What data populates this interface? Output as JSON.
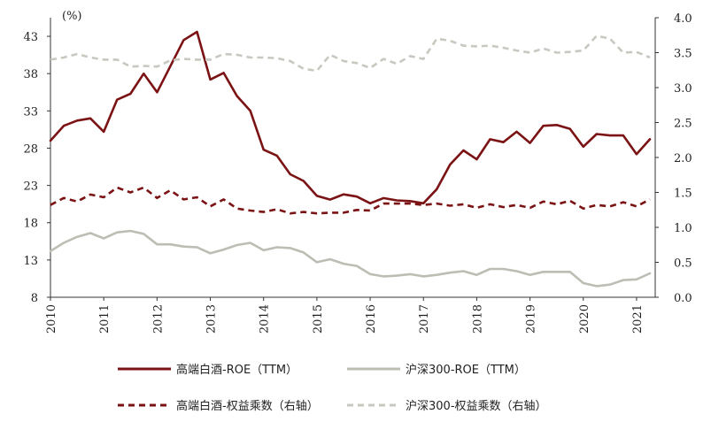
{
  "chart_data": {
    "type": "line",
    "unit_label": "(%)",
    "x_ticks": [
      "2010",
      "2011",
      "2012",
      "2013",
      "2014",
      "2015",
      "2016",
      "2017",
      "2018",
      "2019",
      "2020",
      "2021"
    ],
    "x_range": [
      2010,
      2021.35
    ],
    "y_left": {
      "ticks": [
        "8",
        "13",
        "18",
        "23",
        "28",
        "33",
        "38",
        "43"
      ],
      "range": [
        8,
        45.5
      ]
    },
    "y_right": {
      "ticks": [
        "0.0",
        "0.5",
        "1.0",
        "1.5",
        "2.0",
        "2.5",
        "3.0",
        "3.5",
        "4.0"
      ],
      "range": [
        0,
        4
      ]
    },
    "series": [
      {
        "name": "高端白酒-ROE（TTM）",
        "axis": "left",
        "color": "#7b1315",
        "dash": "solid",
        "width": 2.6,
        "x": [
          2010.0,
          2010.25,
          2010.5,
          2010.75,
          2011.0,
          2011.25,
          2011.5,
          2011.75,
          2012.0,
          2012.25,
          2012.5,
          2012.75,
          2013.0,
          2013.25,
          2013.5,
          2013.75,
          2014.0,
          2014.25,
          2014.5,
          2014.75,
          2015.0,
          2015.25,
          2015.5,
          2015.75,
          2016.0,
          2016.25,
          2016.5,
          2016.75,
          2017.0,
          2017.25,
          2017.5,
          2017.75,
          2018.0,
          2018.25,
          2018.5,
          2018.75,
          2019.0,
          2019.25,
          2019.5,
          2019.75,
          2020.0,
          2020.25,
          2020.5,
          2020.75,
          2021.0,
          2021.25
        ],
        "values": [
          29.0,
          31.0,
          31.7,
          32.0,
          30.2,
          34.5,
          35.3,
          38.0,
          35.5,
          39.0,
          42.5,
          43.6,
          37.2,
          38.1,
          35.0,
          33.0,
          27.8,
          27.0,
          24.5,
          23.6,
          21.6,
          21.1,
          21.8,
          21.5,
          20.6,
          21.3,
          21.0,
          20.9,
          20.6,
          22.5,
          25.8,
          27.7,
          26.5,
          29.2,
          28.8,
          30.2,
          28.7,
          31.0,
          31.1,
          30.6,
          28.2,
          29.9,
          29.7,
          29.7,
          27.2,
          29.2
        ]
      },
      {
        "name": "沪深300-ROE（TTM）",
        "axis": "left",
        "color": "#bdbdb4",
        "dash": "solid",
        "width": 2.6,
        "x": [
          2010.0,
          2010.25,
          2010.5,
          2010.75,
          2011.0,
          2011.25,
          2011.5,
          2011.75,
          2012.0,
          2012.25,
          2012.5,
          2012.75,
          2013.0,
          2013.25,
          2013.5,
          2013.75,
          2014.0,
          2014.25,
          2014.5,
          2014.75,
          2015.0,
          2015.25,
          2015.5,
          2015.75,
          2016.0,
          2016.25,
          2016.5,
          2016.75,
          2017.0,
          2017.25,
          2017.5,
          2017.75,
          2018.0,
          2018.25,
          2018.5,
          2018.75,
          2019.0,
          2019.25,
          2019.5,
          2019.75,
          2020.0,
          2020.25,
          2020.5,
          2020.75,
          2021.0,
          2021.25
        ],
        "values": [
          14.2,
          15.3,
          16.1,
          16.6,
          15.9,
          16.7,
          16.9,
          16.5,
          15.1,
          15.1,
          14.8,
          14.7,
          13.9,
          14.4,
          15.0,
          15.3,
          14.3,
          14.7,
          14.6,
          14.0,
          12.7,
          13.1,
          12.5,
          12.2,
          11.1,
          10.8,
          10.9,
          11.1,
          10.8,
          11.0,
          11.3,
          11.5,
          11.0,
          11.8,
          11.8,
          11.5,
          11.0,
          11.4,
          11.4,
          11.4,
          9.9,
          9.5,
          9.7,
          10.3,
          10.4,
          11.2
        ]
      },
      {
        "name": "高端白酒-权益乘数（右轴）",
        "axis": "right",
        "color": "#7b1315",
        "dash": "dashed",
        "width": 2.6,
        "x": [
          2010.0,
          2010.25,
          2010.5,
          2010.75,
          2011.0,
          2011.25,
          2011.5,
          2011.75,
          2012.0,
          2012.25,
          2012.5,
          2012.75,
          2013.0,
          2013.25,
          2013.5,
          2013.75,
          2014.0,
          2014.25,
          2014.5,
          2014.75,
          2015.0,
          2015.25,
          2015.5,
          2015.75,
          2016.0,
          2016.25,
          2016.5,
          2016.75,
          2017.0,
          2017.25,
          2017.5,
          2017.75,
          2018.0,
          2018.25,
          2018.5,
          2018.75,
          2019.0,
          2019.25,
          2019.5,
          2019.75,
          2020.0,
          2020.25,
          2020.5,
          2020.75,
          2021.0,
          2021.25
        ],
        "values": [
          1.32,
          1.42,
          1.37,
          1.47,
          1.43,
          1.57,
          1.5,
          1.57,
          1.42,
          1.53,
          1.4,
          1.43,
          1.3,
          1.4,
          1.27,
          1.24,
          1.22,
          1.26,
          1.2,
          1.22,
          1.2,
          1.21,
          1.21,
          1.25,
          1.24,
          1.34,
          1.34,
          1.34,
          1.32,
          1.34,
          1.31,
          1.33,
          1.28,
          1.33,
          1.29,
          1.32,
          1.28,
          1.37,
          1.33,
          1.38,
          1.27,
          1.32,
          1.3,
          1.36,
          1.3,
          1.4
        ]
      },
      {
        "name": "沪深300-权益乘数（右轴）",
        "axis": "right",
        "color": "#c8c8c0",
        "dash": "dashed",
        "width": 2.6,
        "x": [
          2010.0,
          2010.25,
          2010.5,
          2010.75,
          2011.0,
          2011.25,
          2011.5,
          2011.75,
          2012.0,
          2012.25,
          2012.5,
          2012.75,
          2013.0,
          2013.25,
          2013.5,
          2013.75,
          2014.0,
          2014.25,
          2014.5,
          2014.75,
          2015.0,
          2015.25,
          2015.5,
          2015.75,
          2016.0,
          2016.25,
          2016.5,
          2016.75,
          2017.0,
          2017.25,
          2017.5,
          2017.75,
          2018.0,
          2018.25,
          2018.5,
          2018.75,
          2019.0,
          2019.25,
          2019.5,
          2019.75,
          2020.0,
          2020.25,
          2020.5,
          2020.75,
          2021.0,
          2021.25
        ],
        "values": [
          3.4,
          3.43,
          3.48,
          3.43,
          3.4,
          3.4,
          3.3,
          3.31,
          3.3,
          3.39,
          3.41,
          3.4,
          3.4,
          3.48,
          3.47,
          3.43,
          3.43,
          3.42,
          3.38,
          3.27,
          3.24,
          3.47,
          3.38,
          3.35,
          3.28,
          3.41,
          3.34,
          3.45,
          3.41,
          3.7,
          3.67,
          3.6,
          3.59,
          3.6,
          3.57,
          3.53,
          3.5,
          3.56,
          3.5,
          3.51,
          3.53,
          3.74,
          3.7,
          3.5,
          3.51,
          3.43
        ]
      }
    ]
  }
}
